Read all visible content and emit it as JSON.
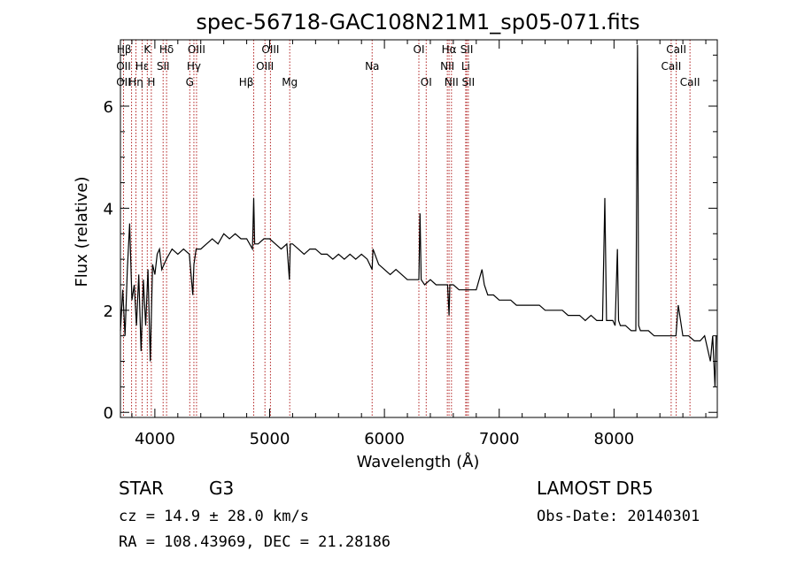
{
  "chart_data": {
    "type": "line",
    "title": "spec-56718-GAC108N21M1_sp05-071.fits",
    "xlabel": "Wavelength (Å)",
    "ylabel": "Flux (relative)",
    "xlim": [
      3700,
      8900
    ],
    "ylim": [
      -0.1,
      7.3
    ],
    "xticks": [
      4000,
      5000,
      6000,
      7000,
      8000
    ],
    "yticks": [
      0,
      2,
      4,
      6
    ],
    "grid": false,
    "series": [
      {
        "line_color": "#000000",
        "x": [
          3700,
          3720,
          3740,
          3760,
          3780,
          3800,
          3820,
          3840,
          3860,
          3880,
          3900,
          3920,
          3940,
          3960,
          3980,
          4000,
          4020,
          4040,
          4060,
          4080,
          4100,
          4150,
          4200,
          4250,
          4300,
          4330,
          4340,
          4360,
          4400,
          4450,
          4500,
          4550,
          4600,
          4650,
          4700,
          4750,
          4800,
          4850,
          4861,
          4870,
          4900,
          4950,
          5000,
          5050,
          5100,
          5150,
          5172,
          5180,
          5200,
          5250,
          5300,
          5350,
          5400,
          5450,
          5500,
          5550,
          5600,
          5650,
          5700,
          5750,
          5800,
          5850,
          5893,
          5900,
          5950,
          6000,
          6050,
          6100,
          6150,
          6200,
          6250,
          6300,
          6310,
          6320,
          6350,
          6400,
          6450,
          6500,
          6550,
          6563,
          6570,
          6600,
          6650,
          6700,
          6750,
          6800,
          6850,
          6870,
          6900,
          6950,
          7000,
          7050,
          7100,
          7150,
          7200,
          7250,
          7300,
          7350,
          7400,
          7450,
          7500,
          7550,
          7600,
          7650,
          7700,
          7750,
          7800,
          7850,
          7900,
          7920,
          7935,
          7950,
          7990,
          8010,
          8030,
          8040,
          8055,
          8080,
          8100,
          8150,
          8190,
          8205,
          8215,
          8230,
          8260,
          8300,
          8350,
          8400,
          8450,
          8500,
          8540,
          8560,
          8600,
          8650,
          8700,
          8750,
          8790,
          8810,
          8840,
          8860,
          8880,
          8890
        ],
        "y": [
          1.6,
          2.4,
          1.5,
          2.8,
          3.7,
          2.2,
          2.5,
          1.7,
          2.7,
          1.2,
          2.6,
          1.7,
          2.8,
          1.0,
          2.9,
          2.7,
          3.1,
          3.2,
          2.8,
          2.9,
          3.0,
          3.2,
          3.1,
          3.2,
          3.1,
          2.3,
          2.9,
          3.2,
          3.2,
          3.3,
          3.4,
          3.3,
          3.5,
          3.4,
          3.5,
          3.4,
          3.4,
          3.2,
          4.2,
          3.3,
          3.3,
          3.4,
          3.4,
          3.3,
          3.2,
          3.3,
          2.6,
          3.3,
          3.3,
          3.2,
          3.1,
          3.2,
          3.2,
          3.1,
          3.1,
          3.0,
          3.1,
          3.0,
          3.1,
          3.0,
          3.1,
          3.0,
          2.8,
          3.2,
          2.9,
          2.8,
          2.7,
          2.8,
          2.7,
          2.6,
          2.6,
          2.6,
          3.9,
          2.6,
          2.5,
          2.6,
          2.5,
          2.5,
          2.5,
          1.9,
          2.5,
          2.5,
          2.4,
          2.4,
          2.4,
          2.4,
          2.8,
          2.5,
          2.3,
          2.3,
          2.2,
          2.2,
          2.2,
          2.1,
          2.1,
          2.1,
          2.1,
          2.1,
          2.0,
          2.0,
          2.0,
          2.0,
          1.9,
          1.9,
          1.9,
          1.8,
          1.9,
          1.8,
          1.8,
          4.2,
          1.8,
          1.8,
          1.8,
          1.7,
          3.2,
          1.8,
          1.7,
          1.7,
          1.7,
          1.6,
          1.6,
          7.2,
          1.7,
          1.6,
          1.6,
          1.6,
          1.5,
          1.5,
          1.5,
          1.5,
          1.5,
          2.1,
          1.5,
          1.5,
          1.4,
          1.4,
          1.5,
          1.3,
          1.0,
          1.5,
          0.5,
          1.5
        ]
      }
    ],
    "spectral_lines": [
      {
        "label": "Hβ",
        "x": 3797,
        "row": 0,
        "align": "end"
      },
      {
        "label": "OII",
        "x": 3727,
        "row": 1,
        "align": "middle"
      },
      {
        "label": "OII",
        "x": 3727,
        "row": 2,
        "align": "middle"
      },
      {
        "label": "Hε",
        "x": 3889,
        "row": 1,
        "align": "middle"
      },
      {
        "label": "Hη",
        "x": 3835,
        "row": 2,
        "align": "middle"
      },
      {
        "label": "K",
        "x": 3934,
        "row": 0,
        "align": "middle"
      },
      {
        "label": "H",
        "x": 3969,
        "row": 2,
        "align": "middle"
      },
      {
        "label": "Hδ",
        "x": 4102,
        "row": 0,
        "align": "middle"
      },
      {
        "label": "SII",
        "x": 4072,
        "row": 1,
        "align": "middle"
      },
      {
        "label": "OIII",
        "x": 4363,
        "row": 0,
        "align": "middle"
      },
      {
        "label": "Hγ",
        "x": 4340,
        "row": 1,
        "align": "middle"
      },
      {
        "label": "G",
        "x": 4304,
        "row": 2,
        "align": "middle"
      },
      {
        "label": "Hβ",
        "x": 4861,
        "row": 2,
        "align": "end"
      },
      {
        "label": "OIII",
        "x": 5007,
        "row": 0,
        "align": "middle"
      },
      {
        "label": "OIII",
        "x": 4959,
        "row": 1,
        "align": "middle"
      },
      {
        "label": "Mg",
        "x": 5175,
        "row": 2,
        "align": "middle"
      },
      {
        "label": "Na",
        "x": 5893,
        "row": 1,
        "align": "middle"
      },
      {
        "label": "OI",
        "x": 6300,
        "row": 0,
        "align": "middle"
      },
      {
        "label": "OI",
        "x": 6364,
        "row": 2,
        "align": "middle"
      },
      {
        "label": "Hα",
        "x": 6563,
        "row": 0,
        "align": "middle"
      },
      {
        "label": "NII",
        "x": 6548,
        "row": 1,
        "align": "middle"
      },
      {
        "label": "NII",
        "x": 6584,
        "row": 2,
        "align": "middle"
      },
      {
        "label": "SII",
        "x": 6717,
        "row": 0,
        "align": "middle"
      },
      {
        "label": "Li",
        "x": 6708,
        "row": 1,
        "align": "middle"
      },
      {
        "label": "SII",
        "x": 6731,
        "row": 2,
        "align": "middle"
      },
      {
        "label": "CaII",
        "x": 8542,
        "row": 0,
        "align": "middle"
      },
      {
        "label": "CaII",
        "x": 8498,
        "row": 1,
        "align": "middle"
      },
      {
        "label": "CaII",
        "x": 8662,
        "row": 2,
        "align": "middle"
      }
    ],
    "vline_color": "#b22222"
  },
  "info": {
    "class_label": "STAR",
    "subclass": "G3",
    "survey": "LAMOST DR5",
    "cz": "cz = 14.9 ± 28.0 km/s",
    "obs_date": "Obs-Date: 20140301",
    "coords": "RA = 108.43969, DEC =  21.28186"
  }
}
